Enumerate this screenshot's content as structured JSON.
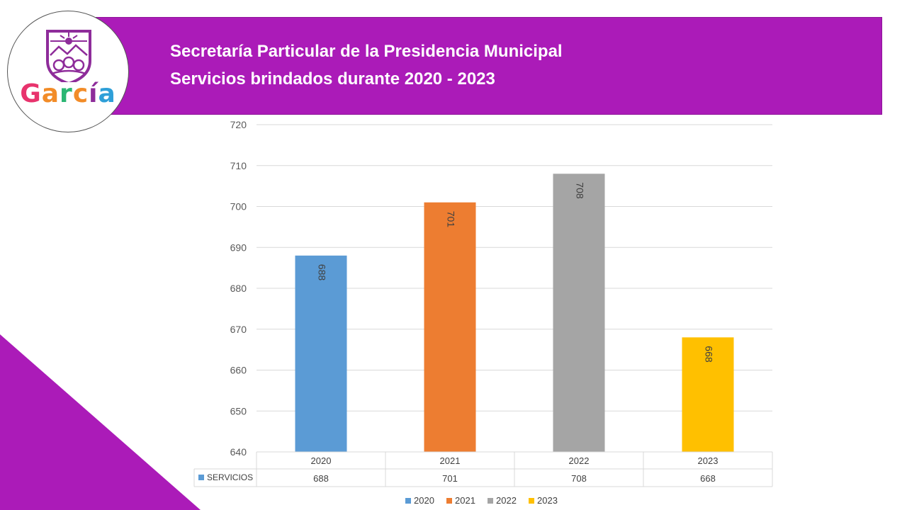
{
  "header": {
    "title_line1": "Secretaría Particular de la Presidencia Municipal",
    "title_line2": "Servicios brindados durante 2020 - 2023",
    "band_color": "#ab1bb8"
  },
  "logo": {
    "text": "García",
    "letters": [
      {
        "ch": "G",
        "color": "#e8336d"
      },
      {
        "ch": "a",
        "color": "#f28c28"
      },
      {
        "ch": "r",
        "color": "#2bb673"
      },
      {
        "ch": "c",
        "color": "#f28c28"
      },
      {
        "ch": "í",
        "color": "#8e2c9a"
      },
      {
        "ch": "a",
        "color": "#2e9fd8"
      }
    ],
    "icon": "garcia-shield-emblem"
  },
  "chart_data": {
    "type": "bar",
    "categories": [
      "2020",
      "2021",
      "2022",
      "2023"
    ],
    "values": [
      688,
      701,
      708,
      668
    ],
    "colors": [
      "#5b9bd5",
      "#ed7d31",
      "#a5a5a5",
      "#ffc000"
    ],
    "ylim": [
      640,
      720
    ],
    "yticks": [
      640,
      650,
      660,
      670,
      680,
      690,
      700,
      710,
      720
    ],
    "series_name": "SERVICIOS",
    "legend": [
      "2020",
      "2021",
      "2022",
      "2023"
    ],
    "legend_position": "bottom",
    "data_table": true,
    "grid": true
  }
}
